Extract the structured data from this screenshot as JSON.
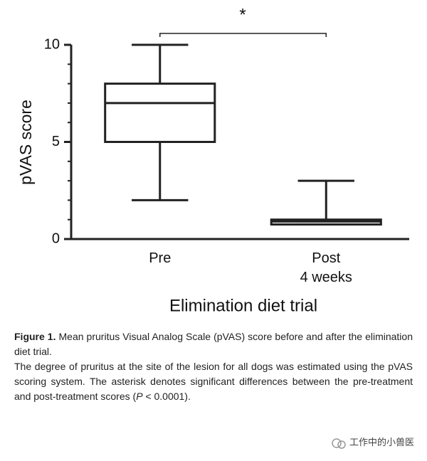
{
  "chart_data": {
    "type": "box",
    "ylabel": "pVAS score",
    "xlabel": "Elimination diet trial",
    "categories": [
      "Pre",
      "Post\n4 weeks"
    ],
    "boxes": [
      {
        "min": 2,
        "q1": 5,
        "median": 7,
        "q3": 8,
        "max": 10
      },
      {
        "min": 0.75,
        "q1": 0.75,
        "median": 0.9,
        "q3": 1,
        "max": 3
      }
    ],
    "color": "#222222",
    "ylim": [
      0,
      10
    ],
    "yticks": [
      0,
      5,
      10
    ],
    "yticks_minor": [
      1,
      2,
      3,
      4,
      6,
      7,
      8,
      9
    ],
    "annotation": "*"
  },
  "caption": {
    "label": "Figure 1.",
    "title": "Mean pruritus Visual Analog Scale (pVAS) score before and after the elimination diet trial.",
    "body": [
      "The degree of pruritus at the site of the lesion for all dogs was estimated using the pVAS scoring system. The asterisk denotes significant differences between the pre-treatment and post-treatment scores (",
      "P",
      " < 0.0001)."
    ]
  },
  "watermark": "工作中的小兽医"
}
